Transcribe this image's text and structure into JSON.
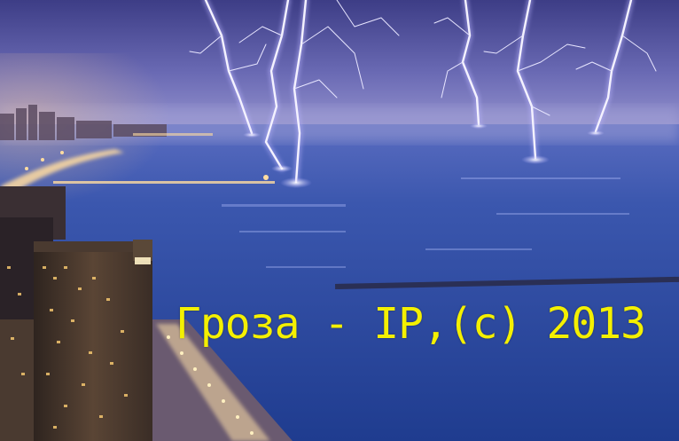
{
  "caption": {
    "text": "Гроза - IP,(с) 2013",
    "color": "#f4f000"
  },
  "scene": {
    "subject": "lightning-over-lake-city",
    "colors": {
      "sky_top": "#3a3f86",
      "sky_horizon": "#8c88c8",
      "water": "#2f4fa6",
      "water_deep": "#1d3a8a",
      "lightning": "#f2f0ff",
      "lightning_glow": "#b9b4ff",
      "city_light": "#ffd98a",
      "building": "#3b2f2a"
    }
  }
}
